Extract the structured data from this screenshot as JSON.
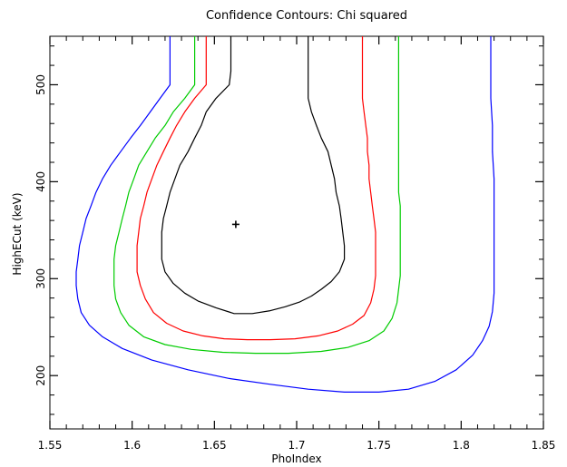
{
  "chart_data": {
    "type": "contour",
    "title": "Confidence Contours: Chi squared",
    "xlabel": "PhoIndex",
    "ylabel": "HighECut (keV)",
    "xlim": [
      1.55,
      1.85
    ],
    "ylim": [
      145,
      550
    ],
    "x_ticks": [
      1.55,
      1.6,
      1.65,
      1.7,
      1.75,
      1.8,
      1.85
    ],
    "x_tick_labels": [
      "1.55",
      "1.6",
      "1.65",
      "1.7",
      "1.75",
      "1.8",
      "1.85"
    ],
    "y_ticks": [
      200,
      300,
      400,
      500
    ],
    "y_tick_labels": [
      "200",
      "300",
      "400",
      "500"
    ],
    "best_fit": {
      "x": 1.663,
      "y": 356
    },
    "contours": [
      {
        "color": "#000000",
        "points": [
          [
            1.66,
            550
          ],
          [
            1.66,
            514
          ],
          [
            1.659,
            500
          ],
          [
            1.651,
            486
          ],
          [
            1.645,
            472
          ],
          [
            1.642,
            458
          ],
          [
            1.638,
            445
          ],
          [
            1.634,
            431
          ],
          [
            1.629,
            417
          ],
          [
            1.626,
            403
          ],
          [
            1.623,
            389
          ],
          [
            1.621,
            375
          ],
          [
            1.619,
            362
          ],
          [
            1.618,
            348
          ],
          [
            1.618,
            334
          ],
          [
            1.618,
            320
          ],
          [
            1.62,
            307
          ],
          [
            1.625,
            295
          ],
          [
            1.632,
            285
          ],
          [
            1.64,
            277
          ],
          [
            1.651,
            270
          ],
          [
            1.662,
            264
          ],
          [
            1.673,
            264
          ],
          [
            1.684,
            267
          ],
          [
            1.693,
            271
          ],
          [
            1.702,
            276
          ],
          [
            1.709,
            282
          ],
          [
            1.715,
            289
          ],
          [
            1.721,
            297
          ],
          [
            1.726,
            307
          ],
          [
            1.729,
            320
          ],
          [
            1.729,
            334
          ],
          [
            1.728,
            348
          ],
          [
            1.727,
            362
          ],
          [
            1.726,
            375
          ],
          [
            1.724,
            389
          ],
          [
            1.723,
            403
          ],
          [
            1.721,
            417
          ],
          [
            1.719,
            431
          ],
          [
            1.715,
            445
          ],
          [
            1.712,
            458
          ],
          [
            1.709,
            472
          ],
          [
            1.707,
            486
          ],
          [
            1.707,
            500
          ],
          [
            1.707,
            514
          ],
          [
            1.707,
            550
          ]
        ]
      },
      {
        "color": "#ff0000",
        "points": [
          [
            1.645,
            550
          ],
          [
            1.645,
            514
          ],
          [
            1.645,
            500
          ],
          [
            1.638,
            486
          ],
          [
            1.632,
            472
          ],
          [
            1.627,
            458
          ],
          [
            1.623,
            445
          ],
          [
            1.619,
            431
          ],
          [
            1.615,
            417
          ],
          [
            1.612,
            403
          ],
          [
            1.609,
            389
          ],
          [
            1.607,
            375
          ],
          [
            1.605,
            362
          ],
          [
            1.604,
            348
          ],
          [
            1.603,
            334
          ],
          [
            1.603,
            320
          ],
          [
            1.603,
            307
          ],
          [
            1.605,
            293
          ],
          [
            1.608,
            279
          ],
          [
            1.613,
            265
          ],
          [
            1.621,
            254
          ],
          [
            1.631,
            246
          ],
          [
            1.643,
            241
          ],
          [
            1.656,
            238
          ],
          [
            1.67,
            237
          ],
          [
            1.684,
            237
          ],
          [
            1.699,
            238
          ],
          [
            1.713,
            241
          ],
          [
            1.725,
            246
          ],
          [
            1.734,
            253
          ],
          [
            1.741,
            262
          ],
          [
            1.745,
            275
          ],
          [
            1.747,
            289
          ],
          [
            1.748,
            303
          ],
          [
            1.748,
            320
          ],
          [
            1.748,
            334
          ],
          [
            1.748,
            348
          ],
          [
            1.747,
            362
          ],
          [
            1.746,
            375
          ],
          [
            1.745,
            389
          ],
          [
            1.744,
            403
          ],
          [
            1.744,
            417
          ],
          [
            1.743,
            431
          ],
          [
            1.743,
            445
          ],
          [
            1.742,
            458
          ],
          [
            1.741,
            472
          ],
          [
            1.74,
            486
          ],
          [
            1.74,
            500
          ],
          [
            1.74,
            514
          ],
          [
            1.74,
            550
          ]
        ]
      },
      {
        "color": "#00cc00",
        "points": [
          [
            1.638,
            550
          ],
          [
            1.638,
            514
          ],
          [
            1.638,
            500
          ],
          [
            1.632,
            486
          ],
          [
            1.625,
            472
          ],
          [
            1.62,
            458
          ],
          [
            1.614,
            445
          ],
          [
            1.609,
            431
          ],
          [
            1.604,
            417
          ],
          [
            1.601,
            403
          ],
          [
            1.598,
            389
          ],
          [
            1.596,
            375
          ],
          [
            1.594,
            362
          ],
          [
            1.592,
            348
          ],
          [
            1.59,
            334
          ],
          [
            1.589,
            320
          ],
          [
            1.589,
            307
          ],
          [
            1.589,
            293
          ],
          [
            1.59,
            279
          ],
          [
            1.593,
            265
          ],
          [
            1.598,
            252
          ],
          [
            1.607,
            240
          ],
          [
            1.62,
            232
          ],
          [
            1.636,
            227
          ],
          [
            1.655,
            224
          ],
          [
            1.675,
            223
          ],
          [
            1.695,
            223
          ],
          [
            1.715,
            225
          ],
          [
            1.731,
            229
          ],
          [
            1.744,
            236
          ],
          [
            1.753,
            246
          ],
          [
            1.758,
            259
          ],
          [
            1.761,
            275
          ],
          [
            1.762,
            289
          ],
          [
            1.763,
            303
          ],
          [
            1.763,
            320
          ],
          [
            1.763,
            334
          ],
          [
            1.763,
            348
          ],
          [
            1.763,
            362
          ],
          [
            1.763,
            375
          ],
          [
            1.762,
            389
          ],
          [
            1.762,
            403
          ],
          [
            1.762,
            417
          ],
          [
            1.762,
            431
          ],
          [
            1.762,
            445
          ],
          [
            1.762,
            458
          ],
          [
            1.762,
            472
          ],
          [
            1.762,
            486
          ],
          [
            1.762,
            500
          ],
          [
            1.762,
            514
          ],
          [
            1.762,
            550
          ]
        ]
      },
      {
        "color": "#0000ff",
        "points": [
          [
            1.623,
            550
          ],
          [
            1.623,
            514
          ],
          [
            1.623,
            500
          ],
          [
            1.617,
            486
          ],
          [
            1.611,
            472
          ],
          [
            1.605,
            458
          ],
          [
            1.599,
            445
          ],
          [
            1.593,
            431
          ],
          [
            1.587,
            417
          ],
          [
            1.582,
            403
          ],
          [
            1.578,
            389
          ],
          [
            1.575,
            375
          ],
          [
            1.572,
            362
          ],
          [
            1.57,
            348
          ],
          [
            1.568,
            334
          ],
          [
            1.567,
            320
          ],
          [
            1.566,
            307
          ],
          [
            1.566,
            293
          ],
          [
            1.567,
            279
          ],
          [
            1.569,
            265
          ],
          [
            1.574,
            252
          ],
          [
            1.582,
            240
          ],
          [
            1.594,
            228
          ],
          [
            1.612,
            216
          ],
          [
            1.634,
            206
          ],
          [
            1.659,
            197
          ],
          [
            1.684,
            191
          ],
          [
            1.707,
            186
          ],
          [
            1.729,
            183
          ],
          [
            1.75,
            183
          ],
          [
            1.768,
            186
          ],
          [
            1.784,
            194
          ],
          [
            1.797,
            206
          ],
          [
            1.807,
            221
          ],
          [
            1.813,
            236
          ],
          [
            1.817,
            251
          ],
          [
            1.819,
            266
          ],
          [
            1.82,
            285
          ],
          [
            1.82,
            303
          ],
          [
            1.82,
            320
          ],
          [
            1.82,
            345
          ],
          [
            1.82,
            375
          ],
          [
            1.82,
            403
          ],
          [
            1.819,
            431
          ],
          [
            1.819,
            458
          ],
          [
            1.818,
            486
          ],
          [
            1.818,
            500
          ],
          [
            1.818,
            514
          ],
          [
            1.818,
            550
          ]
        ]
      }
    ]
  }
}
